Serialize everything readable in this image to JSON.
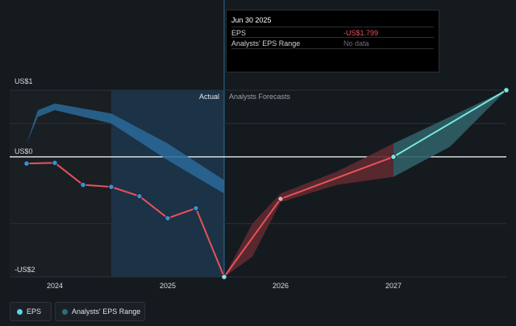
{
  "tooltip": {
    "date": "Jun 30 2025",
    "rows": [
      {
        "label": "EPS",
        "value": "-US$1.799"
      },
      {
        "label": "Analysts' EPS Range",
        "value": "No data"
      }
    ]
  },
  "region_labels": {
    "actual": "Actual",
    "forecast": "Analysts Forecasts"
  },
  "legend": [
    {
      "label": "EPS",
      "color": "#59d4e8"
    },
    {
      "label": "Analysts' EPS Range",
      "color": "#2f6d75"
    }
  ],
  "colors": {
    "eps_negative": "#e8515a",
    "eps_positive": "#7ae7e0",
    "range_positive": "#2f5f66",
    "range_negative": "#5e2a30",
    "actual_region": "#1c3246",
    "background": "#151a1f"
  },
  "chart_data": {
    "type": "line",
    "y_ticks": [
      {
        "label": "US$1",
        "value": 1
      },
      {
        "label": "US$0",
        "value": 0
      },
      {
        "label": "-US$2",
        "value": -2
      }
    ],
    "x_ticks": [
      {
        "label": "2024",
        "value": 2024.0
      },
      {
        "label": "2025",
        "value": 2025.0
      },
      {
        "label": "2026",
        "value": 2026.0
      },
      {
        "label": "2027",
        "value": 2027.0
      }
    ],
    "xlim": [
      2023.6,
      2028.0
    ],
    "ylim": [
      -1.8,
      1.0
    ],
    "actual_end": 2025.5,
    "series": [
      {
        "name": "EPS",
        "points": [
          {
            "x": 2023.75,
            "y": -0.1
          },
          {
            "x": 2024.0,
            "y": -0.09
          },
          {
            "x": 2024.25,
            "y": -0.42
          },
          {
            "x": 2024.5,
            "y": -0.45
          },
          {
            "x": 2024.75,
            "y": -0.59
          },
          {
            "x": 2025.0,
            "y": -0.92
          },
          {
            "x": 2025.25,
            "y": -0.77
          },
          {
            "x": 2025.5,
            "y": -1.8
          },
          {
            "x": 2026.0,
            "y": -0.63
          },
          {
            "x": 2027.0,
            "y": 0.0
          },
          {
            "x": 2028.0,
            "y": 1.0
          }
        ]
      }
    ],
    "range_band": [
      {
        "x": 2025.5,
        "upper": -1.8,
        "lower": -1.8
      },
      {
        "x": 2025.75,
        "upper": -1.0,
        "lower": -1.5
      },
      {
        "x": 2026.0,
        "upper": -0.55,
        "lower": -0.68
      },
      {
        "x": 2026.5,
        "upper": -0.22,
        "lower": -0.42
      },
      {
        "x": 2027.0,
        "upper": 0.2,
        "lower": -0.3
      },
      {
        "x": 2027.5,
        "upper": 0.6,
        "lower": 0.15
      },
      {
        "x": 2028.0,
        "upper": 1.0,
        "lower": 1.0
      }
    ],
    "past_band": [
      {
        "x": 2023.75,
        "upper": 0.2,
        "lower": 0.2
      },
      {
        "x": 2023.85,
        "upper": 0.7,
        "lower": 0.6
      },
      {
        "x": 2024.0,
        "upper": 0.8,
        "lower": 0.7
      },
      {
        "x": 2024.5,
        "upper": 0.65,
        "lower": 0.5
      },
      {
        "x": 2025.0,
        "upper": 0.2,
        "lower": -0.05
      },
      {
        "x": 2025.5,
        "upper": -0.35,
        "lower": -0.55
      }
    ]
  }
}
